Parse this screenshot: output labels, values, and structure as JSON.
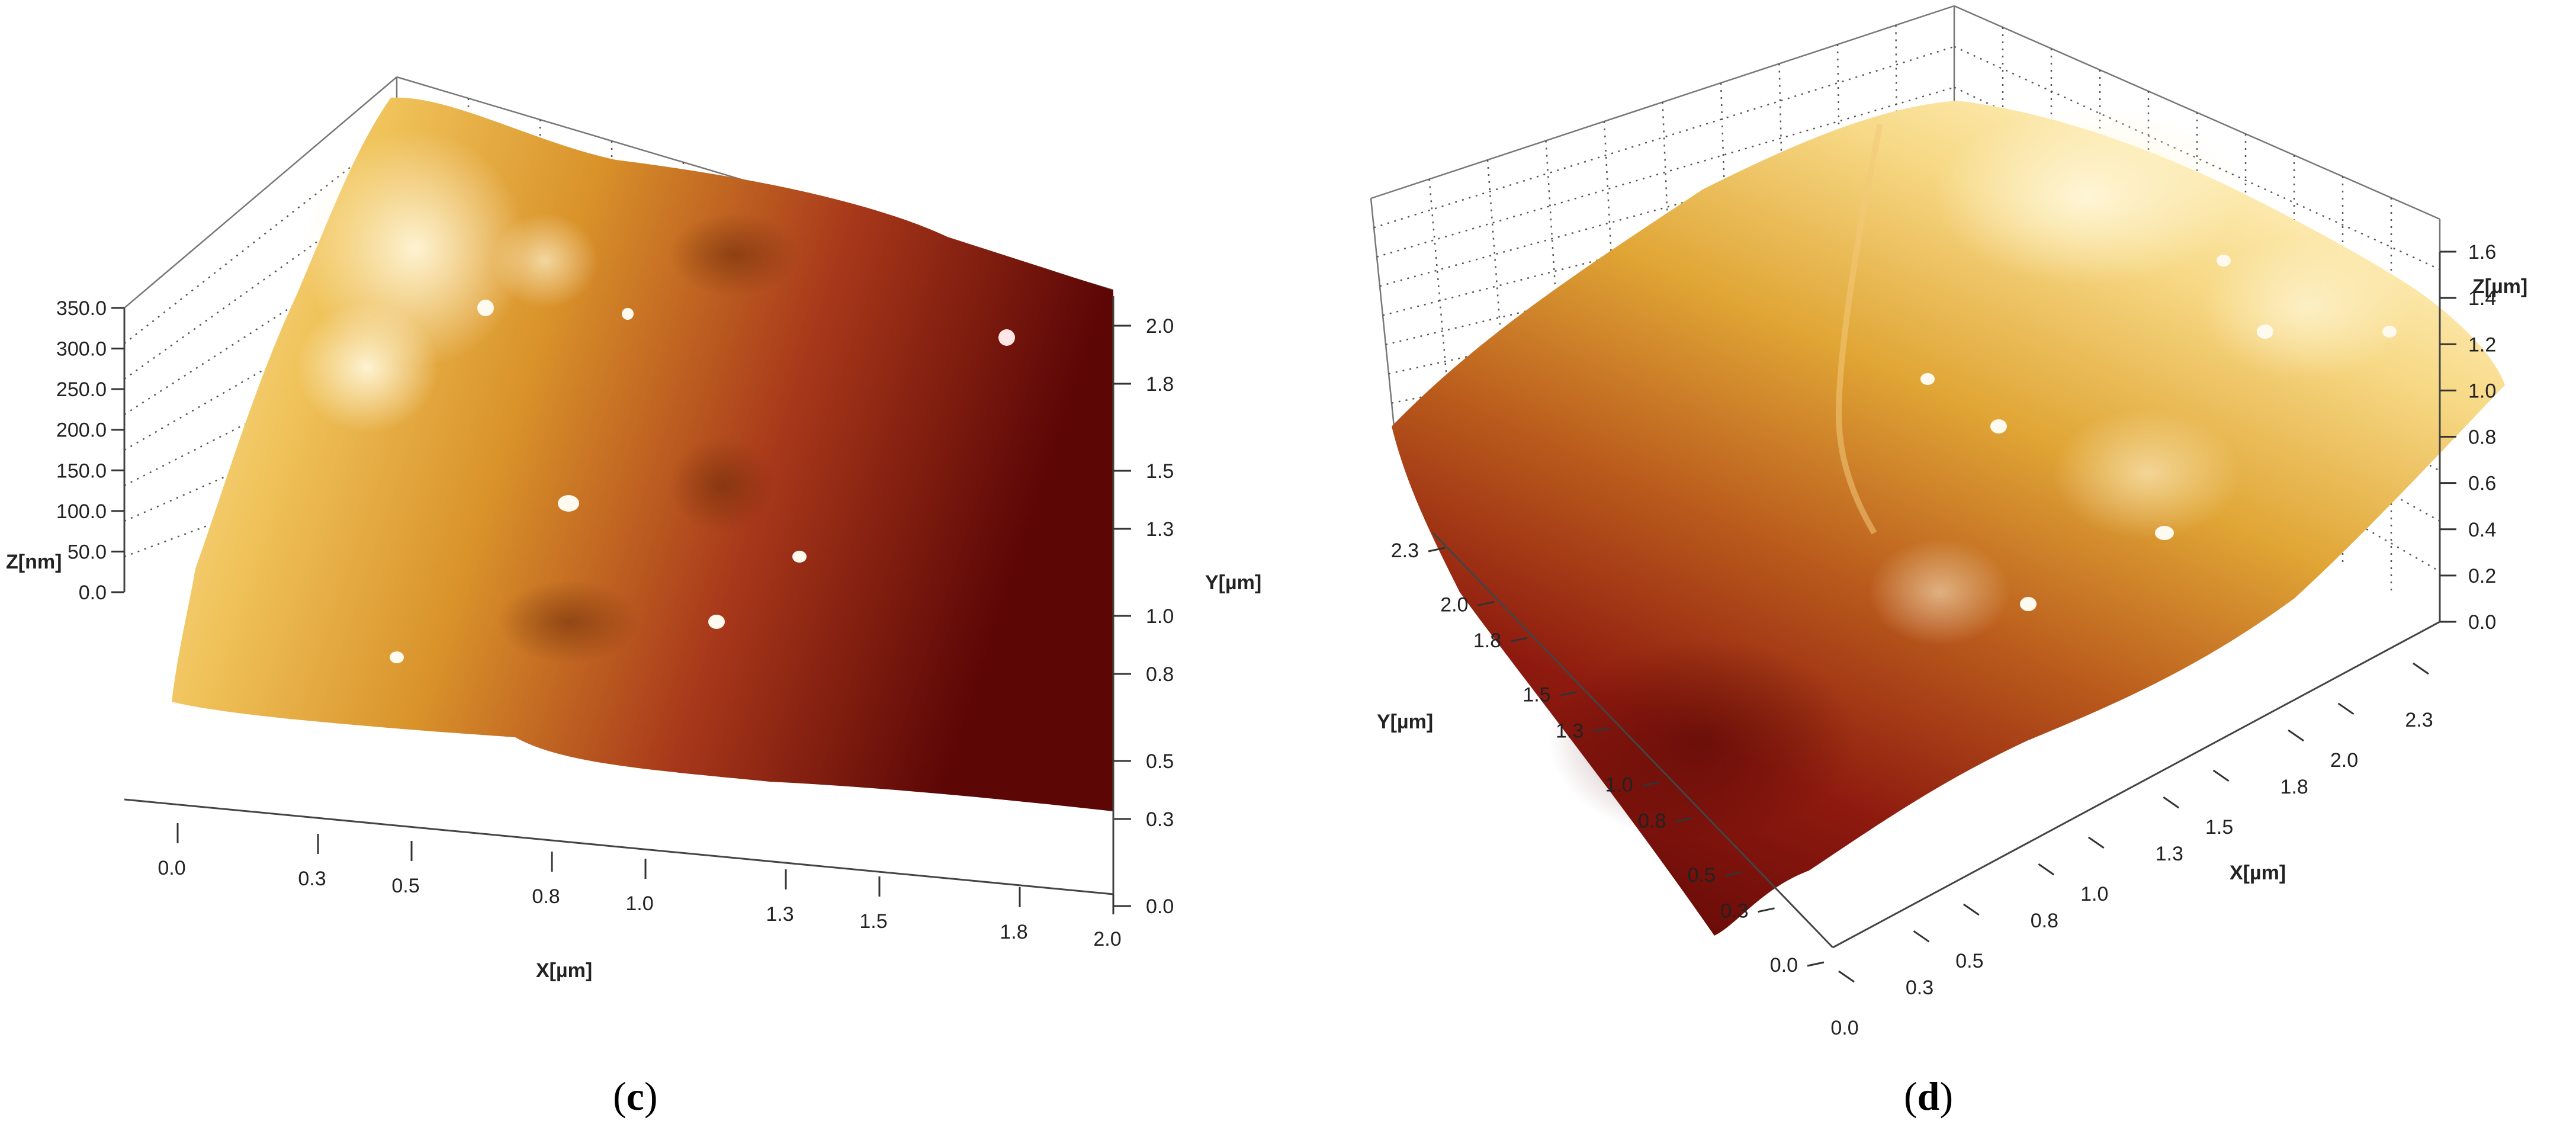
{
  "chart_data": [
    {
      "type": "surface3d",
      "caption_letter": "c",
      "x_axis": {
        "label": "X[µm]",
        "ticks": [
          "0.0",
          "0.3",
          "0.5",
          "0.8",
          "1.0",
          "1.3",
          "1.5",
          "1.8",
          "2.0"
        ]
      },
      "y_axis": {
        "label": "Y[µm]",
        "ticks": [
          "0.0",
          "0.3",
          "0.5",
          "0.8",
          "1.0",
          "1.3",
          "1.5",
          "1.8",
          "2.0"
        ]
      },
      "z_axis": {
        "label": "Z[nm]",
        "ticks": [
          "0.0",
          "50.0",
          "100.0",
          "150.0",
          "200.0",
          "250.0",
          "300.0",
          "350.0"
        ]
      },
      "grid": true,
      "colors": {
        "high": "#fff0b8",
        "mid": "#e0a22a",
        "low": "#6b0a08"
      }
    },
    {
      "type": "surface3d",
      "caption_letter": "d",
      "x_axis": {
        "label": "X[µm]",
        "ticks": [
          "0.0",
          "0.3",
          "0.5",
          "0.8",
          "1.0",
          "1.3",
          "1.5",
          "1.8",
          "2.0",
          "2.3"
        ]
      },
      "y_axis": {
        "label": "Y[µm]",
        "ticks": [
          "0.0",
          "0.3",
          "0.5",
          "0.8",
          "1.0",
          "1.3",
          "1.5",
          "1.8",
          "2.0",
          "2.3"
        ]
      },
      "z_axis": {
        "label": "Z[µm]",
        "ticks": [
          "0.0",
          "0.2",
          "0.4",
          "0.6",
          "0.8",
          "1.0",
          "1.2",
          "1.4",
          "1.6"
        ]
      },
      "grid": true,
      "colors": {
        "high": "#fff3c4",
        "mid": "#d99a2b",
        "low": "#5e0706"
      }
    }
  ]
}
